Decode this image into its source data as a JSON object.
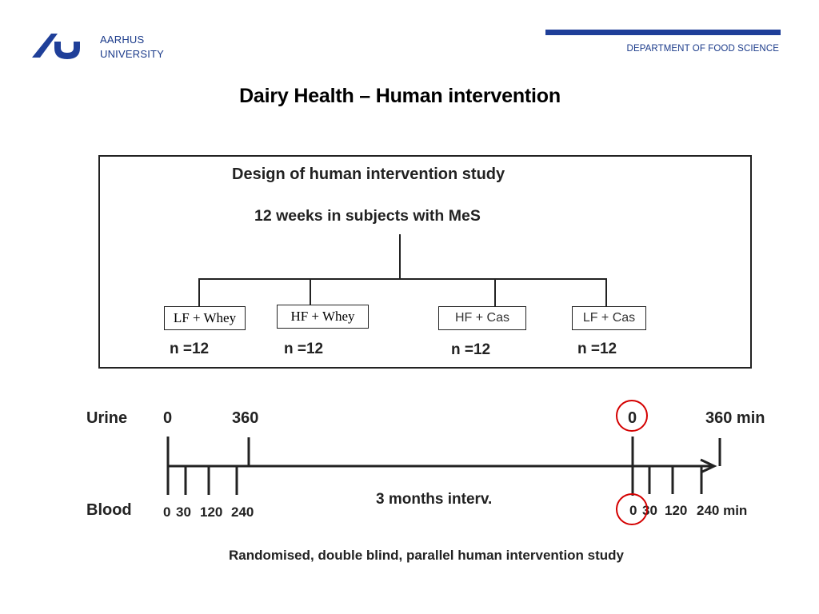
{
  "header": {
    "university_line1": "AARHUS",
    "university_line2": "UNIVERSITY",
    "department": "DEPARTMENT OF FOOD SCIENCE",
    "brand_color": "#1f3f99",
    "logo_icon": "aarhus-university-logo"
  },
  "slide": {
    "title": "Dairy Health – Human intervention"
  },
  "design": {
    "heading": "Design of human intervention study",
    "subheading": "12 weeks in subjects with MeS",
    "arms": [
      {
        "label": "LF + Whey",
        "n": "n =12"
      },
      {
        "label": "HF + Whey",
        "n": "n =12"
      },
      {
        "label": "HF + Cas",
        "n": "n =12"
      },
      {
        "label": "LF + Cas",
        "n": "n =12"
      }
    ]
  },
  "timeline": {
    "urine_label": "Urine",
    "blood_label": "Blood",
    "urine_times_start": [
      "0",
      "360"
    ],
    "urine_times_end": [
      "0",
      "360 min"
    ],
    "blood_times_start": [
      "0",
      "30",
      "120",
      "240"
    ],
    "blood_times_end": [
      "0",
      "30",
      "120",
      "240 min"
    ],
    "interval_label": "3 months interv.",
    "highlight_color": "#d40000"
  },
  "caption": "Randomised, double blind, parallel human intervention study"
}
